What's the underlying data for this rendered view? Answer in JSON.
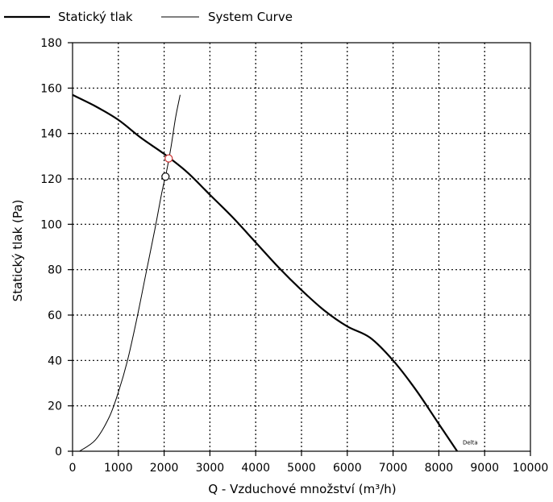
{
  "chart_data": {
    "type": "line",
    "title": "",
    "xlabel": "Q - Vzduchové množství (m³/h)",
    "ylabel": "Statický tlak (Pa)",
    "xlim": [
      0,
      10000
    ],
    "ylim": [
      0,
      180
    ],
    "xticks": [
      0,
      1000,
      2000,
      3000,
      4000,
      5000,
      6000,
      7000,
      8000,
      9000,
      10000
    ],
    "yticks": [
      0,
      20,
      40,
      60,
      80,
      100,
      120,
      140,
      160,
      180
    ],
    "grid": true,
    "legend_position": "top-left",
    "series": [
      {
        "name": "Statický tlak",
        "style": "thick",
        "color": "#000000",
        "points": [
          [
            0,
            157
          ],
          [
            500,
            152
          ],
          [
            1000,
            146
          ],
          [
            1500,
            138
          ],
          [
            2000,
            131
          ],
          [
            2500,
            123
          ],
          [
            3000,
            113
          ],
          [
            3500,
            103
          ],
          [
            4000,
            92
          ],
          [
            4500,
            81
          ],
          [
            5000,
            71
          ],
          [
            5500,
            62
          ],
          [
            6000,
            55
          ],
          [
            6500,
            50
          ],
          [
            7000,
            40
          ],
          [
            7500,
            27
          ],
          [
            8000,
            12
          ],
          [
            8400,
            0
          ]
        ]
      },
      {
        "name": "System Curve",
        "style": "thin",
        "color": "#000000",
        "points": [
          [
            150,
            0
          ],
          [
            500,
            5
          ],
          [
            800,
            15
          ],
          [
            1000,
            26
          ],
          [
            1200,
            40
          ],
          [
            1400,
            58
          ],
          [
            1600,
            78
          ],
          [
            1800,
            98
          ],
          [
            1950,
            114
          ],
          [
            2050,
            123
          ],
          [
            2150,
            134
          ],
          [
            2250,
            147
          ],
          [
            2350,
            157
          ]
        ]
      }
    ],
    "markers": [
      {
        "x": 2100,
        "y": 129,
        "stroke": "#cc3333"
      },
      {
        "x": 2030,
        "y": 121,
        "stroke": "#000000"
      }
    ],
    "annotations": [
      {
        "text": "Delta",
        "x": 8450,
        "y": 2
      }
    ]
  }
}
